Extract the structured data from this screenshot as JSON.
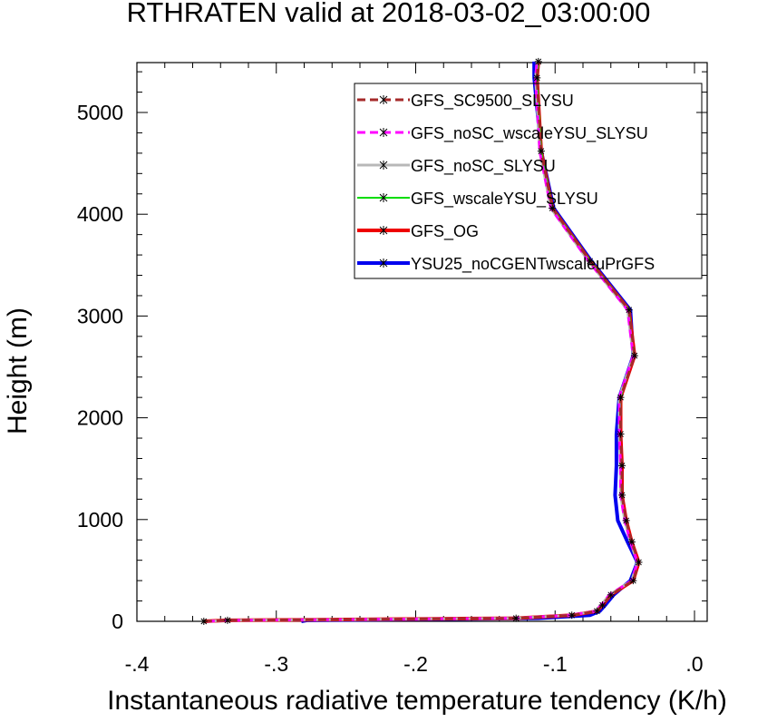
{
  "title": "RTHRATEN valid at 2018-03-02_03:00:00",
  "chart_data": {
    "type": "line",
    "title": "RTHRATEN valid at 2018-03-02_03:00:00",
    "xlabel": "Instantaneous radiative temperature tendency (K/h)",
    "ylabel": "Height (m)",
    "xlim": [
      -0.4,
      0.0
    ],
    "ylim": [
      0,
      5500
    ],
    "x_ticks": [
      -0.4,
      -0.3,
      -0.2,
      -0.1,
      0.0
    ],
    "x_tick_labels": [
      "-.4",
      "-.3",
      "-.2",
      "-.1",
      ".0"
    ],
    "y_ticks": [
      0,
      1000,
      2000,
      3000,
      4000,
      5000
    ],
    "y_tick_labels": [
      "0",
      "1000",
      "2000",
      "3000",
      "4000",
      "5000"
    ],
    "grid": false,
    "legend_position": "top-right",
    "heights": [
      0,
      10,
      30,
      60,
      100,
      160,
      260,
      400,
      580,
      780,
      990,
      1240,
      1530,
      1840,
      2200,
      2610,
      3060,
      3540,
      4060,
      4620,
      5340,
      5500
    ],
    "series": [
      {
        "name": "GFS_SC9500_SLYSU",
        "color": "#a52a2a",
        "style": "dashed",
        "width": 3,
        "values": [
          -0.352,
          -0.335,
          -0.128,
          -0.088,
          -0.07,
          -0.066,
          -0.06,
          -0.044,
          -0.04,
          -0.045,
          -0.049,
          -0.052,
          -0.052,
          -0.053,
          -0.053,
          -0.043,
          -0.047,
          -0.075,
          -0.102,
          -0.11,
          -0.113,
          -0.112
        ]
      },
      {
        "name": "GFS_noSC_wscaleYSU_SLYSU",
        "color": "#ff00ff",
        "style": "dashed",
        "width": 3,
        "values": [
          -0.35,
          -0.333,
          -0.13,
          -0.09,
          -0.071,
          -0.067,
          -0.061,
          -0.045,
          -0.041,
          -0.046,
          -0.05,
          -0.053,
          -0.053,
          -0.054,
          -0.054,
          -0.044,
          -0.048,
          -0.076,
          -0.103,
          -0.111,
          -0.114,
          -0.113
        ]
      },
      {
        "name": "GFS_noSC_SLYSU",
        "color": "#b8b8b8",
        "style": "solid",
        "width": 3,
        "values": [
          -0.35,
          -0.334,
          -0.129,
          -0.089,
          -0.071,
          -0.067,
          -0.061,
          -0.045,
          -0.041,
          -0.046,
          -0.05,
          -0.053,
          -0.053,
          -0.054,
          -0.054,
          -0.044,
          -0.048,
          -0.076,
          -0.103,
          -0.111,
          -0.114,
          -0.113
        ]
      },
      {
        "name": "GFS_wscaleYSU_SLYSU",
        "color": "#00dd00",
        "style": "solid",
        "width": 2,
        "values": [
          -0.351,
          -0.334,
          -0.129,
          -0.089,
          -0.071,
          -0.067,
          -0.061,
          -0.045,
          -0.041,
          -0.046,
          -0.05,
          -0.053,
          -0.053,
          -0.054,
          -0.053,
          -0.044,
          -0.047,
          -0.075,
          -0.102,
          -0.11,
          -0.113,
          -0.112
        ]
      },
      {
        "name": "GFS_OG",
        "color": "#ee0000",
        "style": "solid",
        "width": 4,
        "values": [
          -0.352,
          -0.335,
          -0.128,
          -0.088,
          -0.07,
          -0.066,
          -0.06,
          -0.044,
          -0.04,
          -0.045,
          -0.049,
          -0.052,
          -0.052,
          -0.053,
          -0.053,
          -0.043,
          -0.047,
          -0.075,
          -0.102,
          -0.11,
          -0.113,
          -0.112
        ]
      },
      {
        "name": "YSU25_noCGENTwscaleuPrGFS",
        "color": "#0000ee",
        "style": "solid",
        "width": 4,
        "values": [
          -0.282,
          -0.278,
          -0.112,
          -0.075,
          -0.068,
          -0.064,
          -0.058,
          -0.046,
          -0.041,
          -0.048,
          -0.055,
          -0.057,
          -0.056,
          -0.056,
          -0.054,
          -0.044,
          -0.046,
          -0.074,
          -0.101,
          -0.11,
          -0.115,
          -0.115
        ]
      }
    ]
  }
}
